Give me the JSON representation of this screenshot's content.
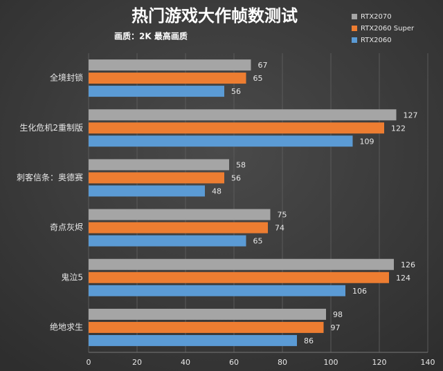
{
  "chart_data": {
    "type": "hbar",
    "title": "热门游戏大作帧数测试",
    "subtitle": "画质：2K 最高画质",
    "categories": [
      "全境封锁",
      "生化危机2重制版",
      "刺客信条：奥德赛",
      "奇点灰烬",
      "鬼泣5",
      "绝地求生"
    ],
    "series": [
      {
        "name": "RTX2070",
        "color": "#a5a5a5",
        "values": [
          67,
          127,
          58,
          75,
          126,
          98
        ]
      },
      {
        "name": "RTX2060 Super",
        "color": "#ed7d31",
        "values": [
          65,
          122,
          56,
          74,
          124,
          97
        ]
      },
      {
        "name": "RTX2060",
        "color": "#5b9bd5",
        "values": [
          56,
          109,
          48,
          65,
          106,
          86
        ]
      }
    ],
    "xlim": [
      0,
      140
    ],
    "xticks": [
      0,
      20,
      40,
      60,
      80,
      100,
      120,
      140
    ],
    "grid": true,
    "legend": "top-right"
  }
}
